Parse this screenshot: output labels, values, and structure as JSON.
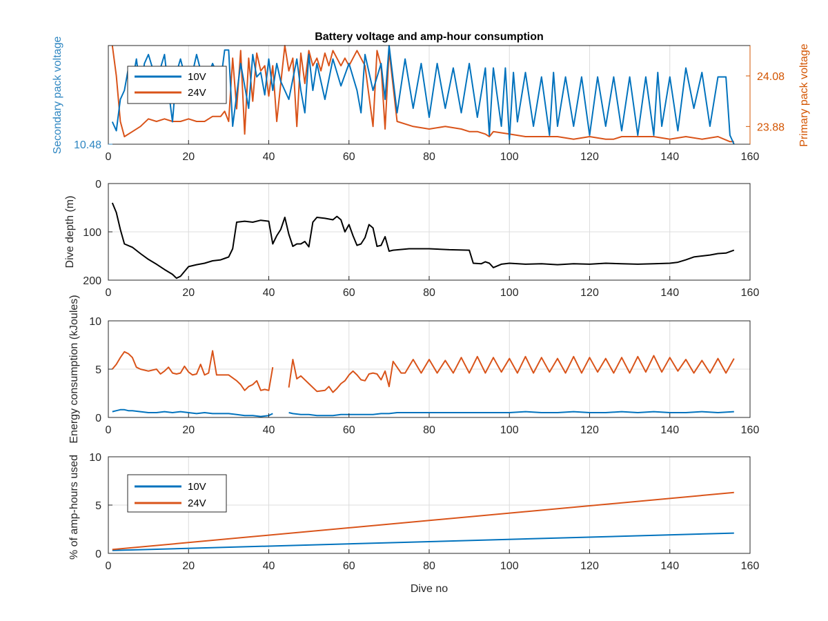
{
  "chart_data": [
    {
      "type": "line",
      "title": "Battery voltage and amp-hour consumption",
      "xlabel": "",
      "ylabel": "Secondary pack voltage",
      "ylabel_right": "Primary pack voltage",
      "xlim": [
        0,
        160
      ],
      "xticks": [
        "0",
        "20",
        "40",
        "60",
        "80",
        "100",
        "120",
        "140",
        "160"
      ],
      "yticks_left": [
        "10.48"
      ],
      "yticks_right": [
        "24.08",
        "23.88"
      ],
      "left_axis_color": "#2E86C1",
      "right_axis_color": "#D35400",
      "legend": {
        "placement": "upper-left",
        "entries": [
          "10V",
          "24V"
        ]
      },
      "series": [
        {
          "name": "10V",
          "axis": "left",
          "color": "#0072BD",
          "ylim": [
            10.48,
            10.7
          ],
          "x": [
            1,
            2,
            3,
            4,
            5,
            6,
            7,
            8,
            9,
            10,
            12,
            14,
            15,
            16,
            17,
            18,
            20,
            22,
            24,
            26,
            28,
            29,
            30,
            31,
            33,
            35,
            36,
            37,
            38,
            39,
            40,
            41,
            42,
            43,
            45,
            47,
            48,
            49,
            50,
            51,
            52,
            54,
            56,
            58,
            60,
            62,
            63,
            64,
            66,
            68,
            69,
            70,
            72,
            74,
            76,
            78,
            80,
            82,
            84,
            86,
            88,
            90,
            92,
            94,
            95,
            96,
            98,
            99,
            100,
            101,
            102,
            104,
            106,
            108,
            110,
            111,
            112,
            114,
            116,
            118,
            120,
            122,
            124,
            126,
            128,
            130,
            132,
            134,
            136,
            137,
            138,
            140,
            142,
            144,
            146,
            148,
            150,
            152,
            154,
            155,
            156
          ],
          "values": [
            10.53,
            10.51,
            10.58,
            10.6,
            10.65,
            10.62,
            10.67,
            10.6,
            10.66,
            10.68,
            10.62,
            10.68,
            10.6,
            10.53,
            10.64,
            10.67,
            10.6,
            10.68,
            10.61,
            10.66,
            10.62,
            10.69,
            10.69,
            10.52,
            10.66,
            10.56,
            10.68,
            10.63,
            10.64,
            10.59,
            10.67,
            10.6,
            10.66,
            10.62,
            10.58,
            10.67,
            10.6,
            10.55,
            10.68,
            10.6,
            10.66,
            10.58,
            10.67,
            10.61,
            10.66,
            10.6,
            10.55,
            10.68,
            10.6,
            10.66,
            10.58,
            10.7,
            10.55,
            10.67,
            10.56,
            10.66,
            10.54,
            10.66,
            10.56,
            10.65,
            10.55,
            10.66,
            10.54,
            10.65,
            10.5,
            10.65,
            10.52,
            10.65,
            10.49,
            10.64,
            10.53,
            10.64,
            10.52,
            10.63,
            10.5,
            10.64,
            10.52,
            10.63,
            10.52,
            10.63,
            10.5,
            10.63,
            10.52,
            10.63,
            10.51,
            10.63,
            10.5,
            10.63,
            10.5,
            10.64,
            10.52,
            10.63,
            10.51,
            10.65,
            10.56,
            10.64,
            10.52,
            10.63,
            10.63,
            10.5,
            10.48
          ]
        },
        {
          "name": "24V",
          "axis": "right",
          "color": "#D95319",
          "ylim": [
            23.81,
            24.2
          ],
          "x": [
            1,
            2,
            3,
            4,
            6,
            8,
            10,
            12,
            14,
            16,
            18,
            20,
            22,
            24,
            26,
            28,
            29,
            30,
            31,
            32,
            33,
            34,
            35,
            36,
            37,
            38,
            39,
            40,
            41,
            42,
            43,
            44,
            45,
            46,
            47,
            48,
            49,
            50,
            51,
            52,
            53,
            54,
            55,
            56,
            57,
            58,
            59,
            60,
            62,
            64,
            66,
            67,
            68,
            69,
            70,
            72,
            76,
            80,
            84,
            88,
            90,
            92,
            94,
            95,
            96,
            100,
            104,
            108,
            112,
            116,
            120,
            124,
            126,
            128,
            132,
            136,
            140,
            144,
            148,
            152,
            155,
            156
          ],
          "values": [
            24.2,
            24.08,
            23.9,
            23.84,
            23.86,
            23.88,
            23.91,
            23.9,
            23.91,
            23.9,
            23.9,
            23.91,
            23.9,
            23.9,
            23.92,
            23.92,
            23.94,
            23.9,
            24.15,
            23.95,
            24.18,
            23.85,
            24.15,
            23.98,
            24.17,
            24.1,
            24.12,
            24.0,
            24.12,
            23.9,
            24.05,
            24.2,
            24.1,
            24.15,
            23.88,
            24.17,
            24.05,
            24.18,
            24.12,
            24.15,
            24.1,
            24.17,
            24.12,
            24.18,
            24.15,
            24.12,
            24.15,
            24.12,
            24.18,
            24.12,
            23.88,
            24.18,
            24.12,
            23.87,
            24.18,
            23.9,
            23.88,
            23.87,
            23.88,
            23.87,
            23.86,
            23.86,
            23.85,
            23.84,
            23.86,
            23.85,
            23.84,
            23.84,
            23.84,
            23.83,
            23.84,
            23.83,
            23.83,
            23.84,
            23.84,
            23.84,
            23.83,
            23.84,
            23.83,
            23.84,
            23.82,
            23.82
          ]
        }
      ]
    },
    {
      "type": "line",
      "title": "",
      "xlabel": "",
      "ylabel": "Dive depth (m)",
      "xlim": [
        0,
        160
      ],
      "ylim": [
        0,
        200
      ],
      "y_reversed": true,
      "xticks": [
        "0",
        "20",
        "40",
        "60",
        "80",
        "100",
        "120",
        "140",
        "160"
      ],
      "yticks": [
        "0",
        "100",
        "200"
      ],
      "series": [
        {
          "color": "#000000",
          "x": [
            1,
            2,
            3,
            4,
            6,
            8,
            10,
            12,
            14,
            16,
            17,
            18,
            19,
            20,
            22,
            24,
            26,
            28,
            29,
            30,
            31,
            32,
            34,
            36,
            38,
            40,
            41,
            42,
            43,
            44,
            45,
            46,
            47,
            48,
            49,
            50,
            51,
            52,
            54,
            56,
            57,
            58,
            59,
            60,
            61,
            62,
            63,
            64,
            65,
            66,
            67,
            68,
            69,
            70,
            71,
            75,
            80,
            85,
            90,
            91,
            93,
            94,
            95,
            96,
            98,
            100,
            104,
            108,
            112,
            116,
            120,
            124,
            128,
            132,
            136,
            140,
            142,
            144,
            146,
            148,
            150,
            152,
            154,
            156
          ],
          "values": [
            40,
            60,
            95,
            125,
            132,
            145,
            157,
            167,
            178,
            188,
            196,
            192,
            182,
            172,
            168,
            165,
            160,
            158,
            155,
            152,
            135,
            80,
            78,
            80,
            76,
            78,
            125,
            108,
            95,
            70,
            105,
            130,
            125,
            125,
            120,
            131,
            80,
            70,
            72,
            75,
            68,
            75,
            100,
            85,
            108,
            128,
            125,
            112,
            85,
            92,
            130,
            128,
            110,
            140,
            138,
            135,
            135,
            137,
            138,
            165,
            166,
            162,
            165,
            174,
            167,
            165,
            167,
            166,
            168,
            166,
            167,
            165,
            166,
            167,
            166,
            165,
            163,
            158,
            152,
            150,
            148,
            145,
            144,
            138
          ]
        }
      ]
    },
    {
      "type": "line",
      "title": "",
      "xlabel": "",
      "ylabel": "Energy consumption (kJoules)",
      "xlim": [
        0,
        160
      ],
      "ylim": [
        0,
        10
      ],
      "xticks": [
        "0",
        "20",
        "40",
        "60",
        "80",
        "100",
        "120",
        "140",
        "160"
      ],
      "yticks": [
        "0",
        "5",
        "10"
      ],
      "series": [
        {
          "color": "#D95319",
          "segments": [
            {
              "x": [
                1,
                2,
                3,
                4,
                5,
                6,
                7,
                8,
                10,
                12,
                13,
                14,
                15,
                16,
                17,
                18,
                19,
                20,
                21,
                22,
                23,
                24,
                25,
                26,
                27,
                28,
                30,
                32,
                33,
                34,
                35,
                36,
                37,
                38,
                39,
                40,
                41
              ],
              "values": [
                5.0,
                5.5,
                6.2,
                6.8,
                6.6,
                6.2,
                5.2,
                5.0,
                4.8,
                5.0,
                4.5,
                4.8,
                5.2,
                4.6,
                4.5,
                4.6,
                5.3,
                4.7,
                4.4,
                4.5,
                5.5,
                4.4,
                4.6,
                6.9,
                4.4,
                4.4,
                4.4,
                3.8,
                3.4,
                2.8,
                3.2,
                3.4,
                3.8,
                2.8,
                2.9,
                2.8,
                5.2
              ]
            },
            {
              "x": [
                45,
                46,
                47,
                48,
                50,
                52,
                54,
                55,
                56,
                57,
                58,
                59,
                60,
                61,
                62,
                63,
                64,
                65,
                66,
                67,
                68,
                69,
                70,
                71,
                73,
                74,
                76,
                78,
                80,
                82,
                84,
                86,
                88,
                90,
                92,
                94,
                96,
                98,
                100,
                102,
                104,
                106,
                108,
                110,
                112,
                114,
                116,
                118,
                120,
                122,
                124,
                126,
                128,
                130,
                132,
                134,
                136,
                138,
                140,
                142,
                144,
                146,
                148,
                150,
                152,
                154,
                156
              ],
              "values": [
                3.1,
                6.0,
                4.0,
                4.3,
                3.5,
                2.7,
                2.8,
                3.2,
                2.6,
                3.0,
                3.5,
                3.8,
                4.4,
                4.8,
                4.4,
                3.9,
                3.8,
                4.5,
                4.6,
                4.5,
                3.9,
                4.8,
                3.2,
                5.8,
                4.6,
                4.6,
                6.0,
                4.6,
                6.0,
                4.6,
                5.9,
                4.6,
                6.2,
                4.6,
                6.3,
                4.6,
                6.2,
                4.7,
                6.1,
                4.6,
                6.3,
                4.6,
                6.2,
                4.7,
                6.1,
                4.6,
                6.3,
                4.6,
                6.2,
                4.7,
                6.1,
                4.6,
                6.2,
                4.6,
                6.3,
                4.7,
                6.4,
                4.7,
                6.2,
                4.8,
                6.0,
                4.6,
                5.9,
                4.6,
                6.1,
                4.6,
                6.1
              ]
            }
          ]
        },
        {
          "color": "#0072BD",
          "segments": [
            {
              "x": [
                1,
                2,
                3,
                4,
                5,
                6,
                8,
                10,
                12,
                14,
                16,
                18,
                20,
                22,
                24,
                26,
                28,
                30,
                32,
                34,
                36,
                38,
                40,
                41
              ],
              "values": [
                0.6,
                0.7,
                0.8,
                0.8,
                0.7,
                0.7,
                0.6,
                0.5,
                0.5,
                0.6,
                0.5,
                0.6,
                0.5,
                0.4,
                0.5,
                0.4,
                0.4,
                0.4,
                0.3,
                0.2,
                0.2,
                0.1,
                0.2,
                0.4
              ]
            },
            {
              "x": [
                45,
                46,
                48,
                50,
                52,
                54,
                56,
                58,
                60,
                62,
                64,
                66,
                68,
                70,
                72,
                76,
                80,
                84,
                88,
                92,
                96,
                100,
                104,
                108,
                112,
                116,
                120,
                124,
                128,
                132,
                136,
                140,
                144,
                148,
                152,
                156
              ],
              "values": [
                0.5,
                0.4,
                0.3,
                0.3,
                0.2,
                0.2,
                0.2,
                0.3,
                0.3,
                0.3,
                0.3,
                0.3,
                0.4,
                0.4,
                0.5,
                0.5,
                0.5,
                0.5,
                0.5,
                0.5,
                0.5,
                0.5,
                0.6,
                0.5,
                0.5,
                0.6,
                0.5,
                0.5,
                0.6,
                0.5,
                0.6,
                0.5,
                0.5,
                0.6,
                0.5,
                0.6
              ]
            }
          ]
        }
      ]
    },
    {
      "type": "line",
      "title": "",
      "xlabel": "Dive no",
      "ylabel": "% of amp-hours used",
      "xlim": [
        0,
        160
      ],
      "ylim": [
        0,
        10
      ],
      "xticks": [
        "0",
        "20",
        "40",
        "60",
        "80",
        "100",
        "120",
        "140",
        "160"
      ],
      "yticks": [
        "0",
        "5",
        "10"
      ],
      "legend": {
        "placement": "upper-left",
        "entries": [
          "10V",
          "24V"
        ]
      },
      "series": [
        {
          "name": "10V",
          "color": "#0072BD",
          "x": [
            1,
            156
          ],
          "values": [
            0.3,
            2.1
          ]
        },
        {
          "name": "24V",
          "color": "#D95319",
          "x": [
            1,
            156
          ],
          "values": [
            0.4,
            6.3
          ]
        }
      ]
    }
  ]
}
